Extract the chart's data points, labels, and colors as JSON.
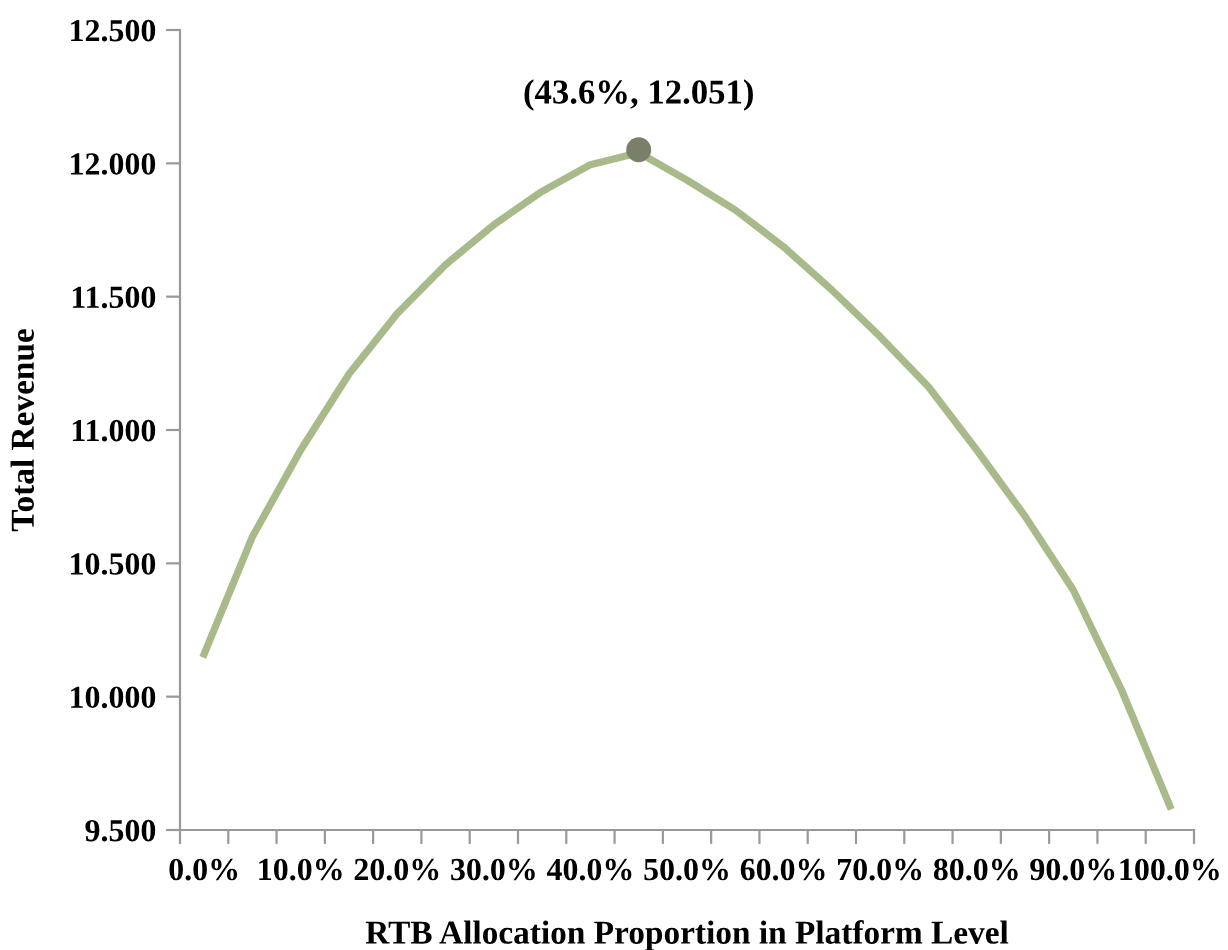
{
  "chart_data": {
    "type": "line",
    "xlabel": "RTB Allocation Proportion in Platform Level",
    "ylabel": "Total Revenue",
    "categories": [
      "0.0%",
      null,
      "10.0%",
      null,
      "20.0%",
      null,
      "30.0%",
      null,
      "40.0%",
      null,
      "50.0%",
      null,
      "60.0%",
      null,
      "70.0%",
      null,
      "80.0%",
      null,
      "90.0%",
      null,
      "100.0%"
    ],
    "series": [
      {
        "color": "#a8b98a",
        "values": [
          10.16,
          10.6,
          10.925,
          11.21,
          11.437,
          11.62,
          11.77,
          11.895,
          11.995,
          12.04,
          11.937,
          11.825,
          11.687,
          11.525,
          11.35,
          11.162,
          10.925,
          10.677,
          10.4,
          10.025,
          9.59
        ]
      }
    ],
    "ylim": [
      9.5,
      12.5
    ],
    "yticks": [
      {
        "value": 9.5,
        "label": "9.500"
      },
      {
        "value": 10,
        "label": "10.000"
      },
      {
        "value": 10.5,
        "label": "10.500"
      },
      {
        "value": 11,
        "label": "11.000"
      },
      {
        "value": 11.5,
        "label": "11.500"
      },
      {
        "value": 12,
        "label": "12.000"
      },
      {
        "value": 12.5,
        "label": "12.500"
      }
    ],
    "annotations": [
      {
        "text": "(43.6%, 12.051)",
        "y": 12.051
      }
    ],
    "marker": "none",
    "line_style": "solid"
  }
}
